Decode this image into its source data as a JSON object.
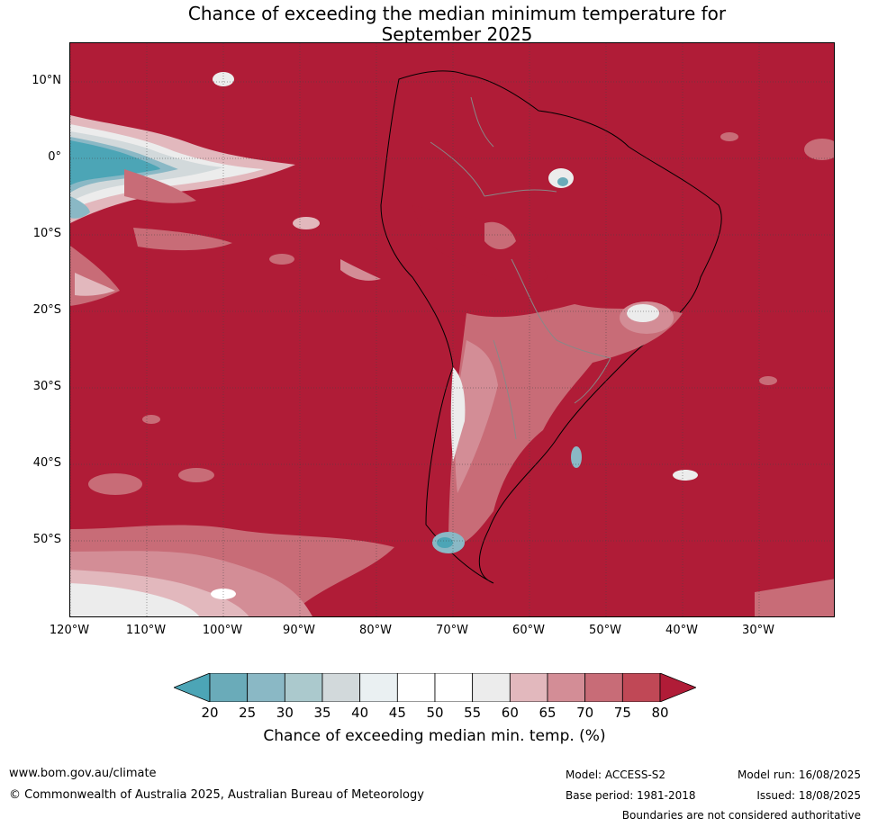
{
  "title": {
    "line1": "Chance of exceeding the median minimum temperature for",
    "line2": "September 2025"
  },
  "map": {
    "background_color": "#b01c37",
    "latitude_labels": [
      "10°N",
      "0°",
      "10°S",
      "20°S",
      "30°S",
      "40°S",
      "50°S"
    ],
    "longitude_labels": [
      "120°W",
      "110°W",
      "100°W",
      "90°W",
      "80°W",
      "70°W",
      "60°W",
      "50°W",
      "40°W",
      "30°W"
    ]
  },
  "colorbar": {
    "ticks": [
      "20",
      "25",
      "30",
      "35",
      "40",
      "45",
      "50",
      "55",
      "60",
      "65",
      "70",
      "75",
      "80"
    ],
    "colors": [
      "#4ca5b6",
      "#6aabb9",
      "#8ab8c5",
      "#abc9cd",
      "#d2d9db",
      "#eaf0f2",
      "#ffffff",
      "#ffffff",
      "#ececec",
      "#e2b8bd",
      "#d38d96",
      "#c86c77",
      "#c04856",
      "#b01c37"
    ],
    "label": "Chance of exceeding median min. temp. (%)"
  },
  "footer": {
    "website": "www.bom.gov.au/climate",
    "copyright": "© Commonwealth of Australia 2025, Australian Bureau of Meteorology",
    "model": "Model: ACCESS-S2",
    "base_period": "Base period: 1981-2018",
    "model_run": "Model run: 16/08/2025",
    "issued": "Issued: 18/08/2025",
    "disclaimer": "Boundaries are not considered authoritative"
  }
}
